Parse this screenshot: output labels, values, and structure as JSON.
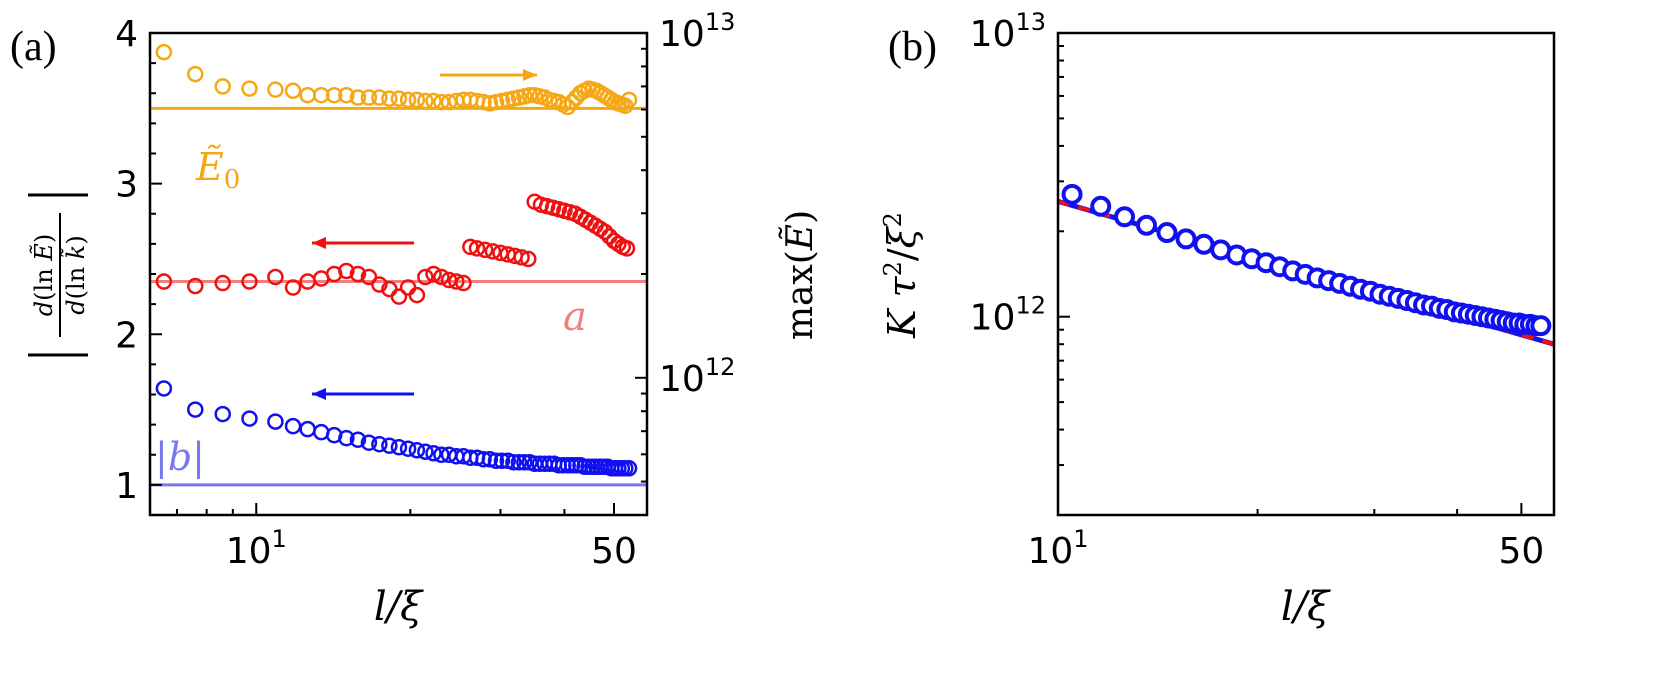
{
  "figure": {
    "panel_a_label": "(a)",
    "panel_b_label": "(b)",
    "x_label": "l/ξ",
    "panel_a_ylabel_left": "|d(ln Ẽ)/d(ln k̃)|",
    "panel_a_ylabel_right": "max(Ẽ)",
    "panel_b_ylabel": "Kτ²/ξ²"
  },
  "chart_data": [
    {
      "type": "scatter",
      "panel": "(a)",
      "xscale": "log",
      "xlim": [
        6.2,
        58
      ],
      "x_ticks": [
        {
          "value": 10,
          "base": "10",
          "exp": "1"
        },
        {
          "value": 50,
          "base": "50",
          "exp": ""
        }
      ],
      "left_axis": {
        "label": "|d(ln Ẽ)/d(ln k̃)|",
        "ylim": [
          0.8,
          4.0
        ],
        "ticks": [
          "1",
          "2",
          "3",
          "4"
        ]
      },
      "right_axis": {
        "label": "max(Ẽ)",
        "scale": "log",
        "ylim": [
          400000000000.0,
          10000000000000.0
        ],
        "ticks": [
          {
            "value": 1000000000000.0,
            "base": "10",
            "exp": "12"
          },
          {
            "value": 10000000000000.0,
            "base": "10",
            "exp": "13"
          }
        ]
      },
      "reference_lines": [
        {
          "label": "Ẽ₀",
          "y": 3.5,
          "axis": "left",
          "color": "#f5a814"
        },
        {
          "label": "a",
          "y": 2.35,
          "axis": "left",
          "color": "#f08080"
        },
        {
          "label": "|b|",
          "y": 1.0,
          "axis": "left",
          "color": "#7878f0"
        }
      ],
      "series": [
        {
          "axis": "right",
          "color": "#f5a814",
          "arrow": "right",
          "x": [
            6.6,
            7.6,
            8.6,
            9.7,
            10.9,
            11.8,
            12.6,
            13.4,
            14.2,
            15.0,
            15.8,
            16.6,
            17.4,
            18.2,
            19.0,
            19.8,
            20.6,
            21.4,
            22.2,
            23.0,
            23.8,
            24.6,
            25.4,
            26.2,
            27.0,
            27.8,
            28.6,
            29.4,
            30.2,
            31.0,
            31.8,
            32.6,
            33.4,
            34.2,
            35.0,
            35.8,
            36.6,
            37.4,
            38.2,
            39.0,
            39.8,
            40.6,
            41.4,
            42.2,
            43.0,
            43.8,
            44.6,
            45.4,
            46.2,
            47.0,
            47.8,
            48.6,
            49.4,
            50.2,
            51.0,
            51.8,
            52.6,
            53.5
          ],
          "y": [
            8800000000000.0,
            7600000000000.0,
            7000000000000.0,
            6900000000000.0,
            6850000000000.0,
            6800000000000.0,
            6600000000000.0,
            6600000000000.0,
            6600000000000.0,
            6600000000000.0,
            6500000000000.0,
            6500000000000.0,
            6500000000000.0,
            6450000000000.0,
            6450000000000.0,
            6400000000000.0,
            6400000000000.0,
            6350000000000.0,
            6350000000000.0,
            6300000000000.0,
            6300000000000.0,
            6350000000000.0,
            6400000000000.0,
            6400000000000.0,
            6350000000000.0,
            6300000000000.0,
            6250000000000.0,
            6300000000000.0,
            6350000000000.0,
            6400000000000.0,
            6450000000000.0,
            6500000000000.0,
            6550000000000.0,
            6600000000000.0,
            6600000000000.0,
            6550000000000.0,
            6500000000000.0,
            6400000000000.0,
            6350000000000.0,
            6300000000000.0,
            6200000000000.0,
            6100000000000.0,
            6300000000000.0,
            6500000000000.0,
            6700000000000.0,
            6800000000000.0,
            6900000000000.0,
            6850000000000.0,
            6800000000000.0,
            6700000000000.0,
            6600000000000.0,
            6500000000000.0,
            6400000000000.0,
            6300000000000.0,
            6250000000000.0,
            6200000000000.0,
            6150000000000.0,
            6400000000000.0
          ]
        },
        {
          "axis": "left",
          "color": "#f01010",
          "arrow": "left",
          "x": [
            6.6,
            7.6,
            8.6,
            9.7,
            10.9,
            11.8,
            12.6,
            13.4,
            14.2,
            15.0,
            15.8,
            16.6,
            17.4,
            18.2,
            19.0,
            19.8,
            20.6,
            21.4,
            22.2,
            23.0,
            23.8,
            24.6,
            25.4,
            26.2,
            27.0,
            28.0,
            29.0,
            30.0,
            31.0,
            32.0,
            33.0,
            34.0,
            35.0,
            36.0,
            37.0,
            38.0,
            39.0,
            40.0,
            41.0,
            42.0,
            43.0,
            44.0,
            45.0,
            46.0,
            47.0,
            48.0,
            49.0,
            50.0,
            51.0,
            52.0,
            53.0
          ],
          "y": [
            2.35,
            2.32,
            2.34,
            2.35,
            2.38,
            2.31,
            2.35,
            2.37,
            2.4,
            2.42,
            2.4,
            2.38,
            2.33,
            2.3,
            2.25,
            2.31,
            2.26,
            2.38,
            2.4,
            2.38,
            2.36,
            2.35,
            2.34,
            2.58,
            2.57,
            2.56,
            2.55,
            2.54,
            2.53,
            2.52,
            2.51,
            2.5,
            2.88,
            2.86,
            2.85,
            2.84,
            2.83,
            2.82,
            2.81,
            2.8,
            2.78,
            2.76,
            2.74,
            2.72,
            2.7,
            2.68,
            2.65,
            2.62,
            2.6,
            2.58,
            2.57
          ]
        },
        {
          "axis": "left",
          "color": "#1010f0",
          "arrow": "left",
          "x": [
            6.6,
            7.6,
            8.6,
            9.7,
            10.9,
            11.8,
            12.6,
            13.4,
            14.2,
            15.0,
            15.8,
            16.6,
            17.4,
            18.2,
            19.0,
            19.8,
            20.6,
            21.4,
            22.2,
            23.0,
            23.8,
            24.6,
            25.4,
            26.2,
            27.0,
            27.8,
            28.6,
            29.4,
            30.2,
            31.0,
            31.8,
            32.6,
            33.4,
            34.2,
            35.0,
            35.8,
            36.6,
            37.4,
            38.2,
            39.0,
            39.8,
            40.6,
            41.4,
            42.2,
            43.0,
            43.8,
            44.6,
            45.4,
            46.2,
            47.0,
            47.8,
            48.6,
            49.4,
            50.2,
            51.0,
            51.8,
            52.6,
            53.5
          ],
          "y": [
            1.64,
            1.5,
            1.47,
            1.44,
            1.42,
            1.39,
            1.37,
            1.35,
            1.33,
            1.31,
            1.3,
            1.28,
            1.27,
            1.26,
            1.25,
            1.24,
            1.23,
            1.22,
            1.21,
            1.2,
            1.2,
            1.19,
            1.19,
            1.18,
            1.18,
            1.17,
            1.17,
            1.16,
            1.16,
            1.16,
            1.15,
            1.15,
            1.15,
            1.15,
            1.14,
            1.14,
            1.14,
            1.14,
            1.14,
            1.13,
            1.13,
            1.13,
            1.13,
            1.13,
            1.13,
            1.12,
            1.12,
            1.12,
            1.12,
            1.12,
            1.12,
            1.12,
            1.11,
            1.11,
            1.11,
            1.11,
            1.11,
            1.11
          ]
        }
      ]
    },
    {
      "type": "scatter",
      "panel": "(b)",
      "xscale": "log",
      "yscale": "log",
      "xlim": [
        10,
        56
      ],
      "ylim": [
        200000000000.0,
        10000000000000.0
      ],
      "x_ticks": [
        {
          "value": 10,
          "base": "10",
          "exp": "1"
        },
        {
          "value": 50,
          "base": "50",
          "exp": ""
        }
      ],
      "y_ticks": [
        {
          "value": 1000000000000.0,
          "base": "10",
          "exp": "12"
        },
        {
          "value": 10000000000000.0,
          "base": "10",
          "exp": "13"
        }
      ],
      "ylabel": "Kτ²/ξ²",
      "fit_line": {
        "x": [
          10,
          56
        ],
        "y": [
          2550000000000.0,
          800000000000.0
        ],
        "color": "#1010f0",
        "dash_color": "#f01010"
      },
      "series": [
        {
          "color": "#1010f0",
          "x": [
            10.5,
            11.6,
            12.6,
            13.6,
            14.6,
            15.6,
            16.6,
            17.6,
            18.6,
            19.6,
            20.6,
            21.6,
            22.6,
            23.6,
            24.6,
            25.6,
            26.6,
            27.6,
            28.6,
            29.6,
            30.6,
            31.6,
            32.6,
            33.6,
            34.6,
            35.6,
            36.6,
            37.6,
            38.6,
            39.6,
            40.6,
            41.6,
            42.6,
            43.6,
            44.6,
            45.6,
            46.6,
            47.6,
            48.6,
            49.6,
            50.6,
            51.6,
            52.6,
            53.5
          ],
          "y": [
            2700000000000.0,
            2450000000000.0,
            2250000000000.0,
            2100000000000.0,
            1980000000000.0,
            1880000000000.0,
            1800000000000.0,
            1720000000000.0,
            1650000000000.0,
            1600000000000.0,
            1550000000000.0,
            1500000000000.0,
            1450000000000.0,
            1410000000000.0,
            1370000000000.0,
            1340000000000.0,
            1310000000000.0,
            1280000000000.0,
            1250000000000.0,
            1230000000000.0,
            1200000000000.0,
            1180000000000.0,
            1160000000000.0,
            1140000000000.0,
            1120000000000.0,
            1100000000000.0,
            1090000000000.0,
            1070000000000.0,
            1060000000000.0,
            1040000000000.0,
            1030000000000.0,
            1020000000000.0,
            1010000000000.0,
            1000000000000.0,
            990000000000.0,
            980000000000.0,
            970000000000.0,
            960000000000.0,
            950000000000.0,
            950000000000.0,
            940000000000.0,
            940000000000.0,
            930000000000.0,
            930000000000.0
          ]
        }
      ]
    }
  ]
}
